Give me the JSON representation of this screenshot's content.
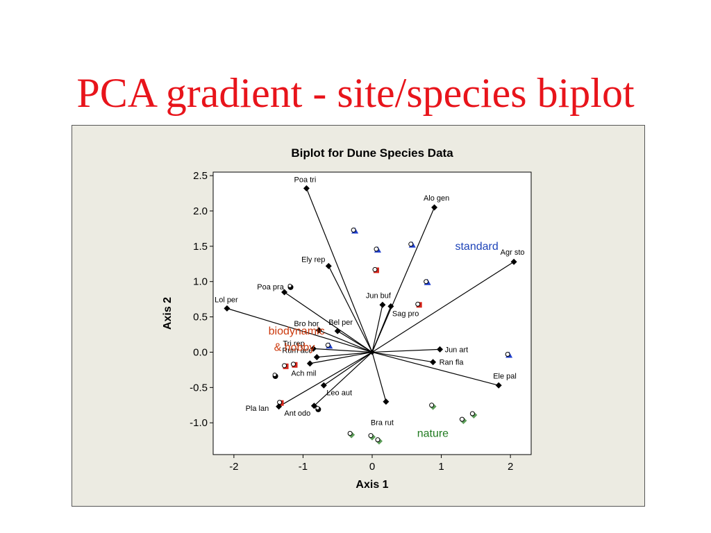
{
  "slide": {
    "title": "PCA gradient - site/species biplot"
  },
  "chart_data": {
    "type": "scatter",
    "title": "Biplot for Dune Species Data",
    "xlabel": "Axis 1",
    "ylabel": "Axis 2",
    "xlim": [
      -2.3,
      2.3
    ],
    "ylim": [
      -1.45,
      2.55
    ],
    "x_ticks": [
      -2,
      -1,
      0,
      1,
      2
    ],
    "y_ticks": [
      2.5,
      2.0,
      1.5,
      1.0,
      0.5,
      0.0,
      -0.5,
      -1.0
    ],
    "x_tick_labels": [
      "-2",
      "-1",
      "0",
      "1",
      "2"
    ],
    "y_tick_labels": [
      "2.5",
      "2.0",
      "1.5",
      "1.0",
      "0.5",
      "0.0",
      "-0.5",
      "-1.0"
    ],
    "grid": false,
    "colors": {
      "standard": "#1f3fcf",
      "biodynamic": "#d8261c",
      "nature": "#5d9e5a",
      "species": "#000000",
      "group_standard": "#1d43b8",
      "group_biodynamic": "#cc3a0e",
      "group_nature": "#1f7a1f"
    },
    "species": [
      {
        "label": "Poa tri",
        "x": -0.95,
        "y": 2.32
      },
      {
        "label": "Alo gen",
        "x": 0.9,
        "y": 2.05
      },
      {
        "label": "Agr sto",
        "x": 2.05,
        "y": 1.28
      },
      {
        "label": "Ely rep",
        "x": -0.63,
        "y": 1.22
      },
      {
        "label": "Poa pra",
        "x": -1.27,
        "y": 0.85
      },
      {
        "label": "Lol per",
        "x": -2.1,
        "y": 0.62
      },
      {
        "label": "Jun buf",
        "x": 0.15,
        "y": 0.67
      },
      {
        "label": "Sag pro",
        "x": 0.27,
        "y": 0.65
      },
      {
        "label": "Bro hor",
        "x": -0.77,
        "y": 0.31
      },
      {
        "label": "Bel per",
        "x": -0.5,
        "y": 0.3
      },
      {
        "label": "Tri rep",
        "x": -0.85,
        "y": 0.05
      },
      {
        "label": "Rum ace",
        "x": -0.8,
        "y": -0.07
      },
      {
        "label": "Ach mil",
        "x": -0.9,
        "y": -0.16
      },
      {
        "label": "Jun art",
        "x": 0.98,
        "y": 0.04
      },
      {
        "label": "Ran fla",
        "x": 0.88,
        "y": -0.14
      },
      {
        "label": "Ele pal",
        "x": 1.83,
        "y": -0.47
      },
      {
        "label": "Leo aut",
        "x": -0.7,
        "y": -0.47
      },
      {
        "label": "Bra rut",
        "x": 0.2,
        "y": -0.7
      },
      {
        "label": "Ant odo",
        "x": -0.84,
        "y": -0.76
      },
      {
        "label": "Pla lan",
        "x": -1.35,
        "y": -0.77
      }
    ],
    "sites": [
      {
        "group": "standard",
        "x": -0.25,
        "y": 1.72
      },
      {
        "group": "standard",
        "x": 0.08,
        "y": 1.45
      },
      {
        "group": "standard",
        "x": 0.58,
        "y": 1.52
      },
      {
        "group": "standard",
        "x": 0.8,
        "y": 0.99
      },
      {
        "group": "standard",
        "x": -0.62,
        "y": 0.09
      },
      {
        "group": "standard",
        "x": 1.98,
        "y": -0.04
      },
      {
        "group": "biodynamic",
        "x": 0.06,
        "y": 1.16
      },
      {
        "group": "biodynamic",
        "x": 0.68,
        "y": 0.67
      },
      {
        "group": "biodynamic",
        "x": -1.25,
        "y": -0.2
      },
      {
        "group": "biodynamic",
        "x": -1.12,
        "y": -0.18
      },
      {
        "group": "biodynamic",
        "x": -1.32,
        "y": -0.72
      },
      {
        "group": "hobby",
        "x": -1.18,
        "y": 0.92
      },
      {
        "group": "hobby",
        "x": -1.4,
        "y": -0.34
      },
      {
        "group": "hobby",
        "x": -0.78,
        "y": -0.81
      },
      {
        "group": "nature",
        "x": 0.88,
        "y": -0.77
      },
      {
        "group": "nature",
        "x": 1.32,
        "y": -0.97
      },
      {
        "group": "nature",
        "x": 1.47,
        "y": -0.89
      },
      {
        "group": "nature",
        "x": -0.3,
        "y": -1.17
      },
      {
        "group": "nature",
        "x": 0.0,
        "y": -1.2
      },
      {
        "group": "nature",
        "x": 0.1,
        "y": -1.26
      }
    ],
    "group_labels": [
      {
        "text": "standard",
        "x": 1.2,
        "y": 1.45,
        "group": "standard"
      },
      {
        "text": "biodynamic",
        "x": -1.5,
        "y": 0.25,
        "group": "biodynamic"
      },
      {
        "text": "& hobby",
        "x": -1.42,
        "y": 0.02,
        "group": "biodynamic"
      },
      {
        "text": "nature",
        "x": 0.65,
        "y": -1.2,
        "group": "nature"
      }
    ]
  }
}
